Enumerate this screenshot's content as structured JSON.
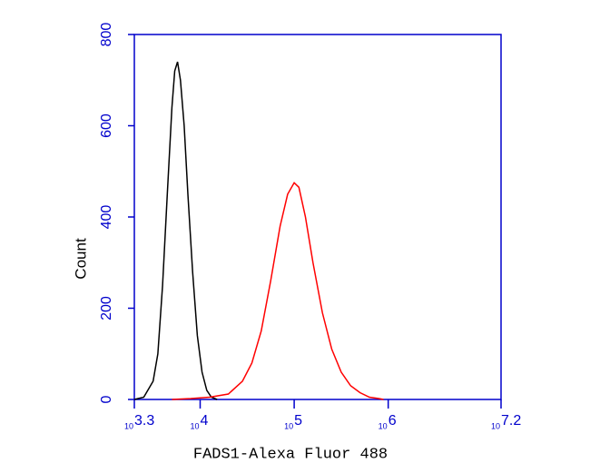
{
  "chart_data": {
    "type": "line",
    "x_label": "FADS1-Alexa Fluor 488",
    "y_label": "Count",
    "xscale": "log",
    "xlim": [
      1995.26,
      15848932
    ],
    "xticks": [
      {
        "value": 1995.26,
        "label": "10",
        "exponent": "3.3"
      },
      {
        "value": 10000,
        "label": "10",
        "exponent": "4"
      },
      {
        "value": 100000,
        "label": "10",
        "exponent": "5"
      },
      {
        "value": 1000000,
        "label": "10",
        "exponent": "6"
      },
      {
        "value": 15848932,
        "label": "10",
        "exponent": "7.2"
      }
    ],
    "ylim": [
      0,
      800
    ],
    "yticks": [
      0,
      200,
      400,
      600,
      800
    ],
    "axis_color": "#0000cc",
    "series": [
      {
        "color": "#000000",
        "x": [
          1995,
          2512,
          3162,
          3548,
          3981,
          4467,
          5012,
          5370,
          5754,
          6166,
          6761,
          7413,
          8318,
          9333,
          10471,
          11749,
          13183,
          15136
        ],
        "values": [
          0,
          5,
          40,
          100,
          250,
          450,
          640,
          720,
          740,
          700,
          600,
          450,
          280,
          140,
          60,
          20,
          5,
          0
        ]
      },
      {
        "color": "#ff0000",
        "x": [
          5012,
          7943,
          12589,
          19953,
          28184,
          35481,
          44668,
          56234,
          70795,
          85114,
          100000,
          112202,
          131826,
          158489,
          199526,
          251189,
          316228,
          398107,
          501187,
          630957,
          794328,
          891251
        ],
        "values": [
          0,
          2,
          5,
          12,
          40,
          80,
          150,
          260,
          380,
          450,
          475,
          465,
          400,
          300,
          190,
          110,
          60,
          30,
          15,
          5,
          2,
          0
        ]
      }
    ]
  }
}
